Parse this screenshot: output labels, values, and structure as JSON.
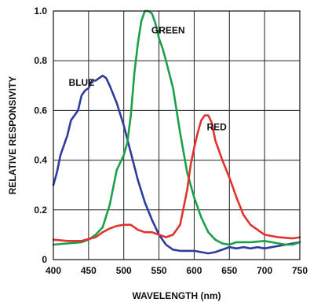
{
  "chart_data": {
    "type": "line",
    "title": "",
    "xlabel": "WAVELENGTH (nm)",
    "ylabel": "RELATIVE RESPONSIVITY",
    "xlim": [
      400,
      750
    ],
    "ylim": [
      0,
      1.0
    ],
    "x_ticks": [
      "400",
      "450",
      "500",
      "550",
      "600",
      "650",
      "700",
      "750"
    ],
    "y_ticks": [
      "0",
      "0.2",
      "0.4",
      "0.6",
      "0.8",
      "1.0"
    ],
    "grid": true,
    "series": [
      {
        "name": "BLUE",
        "color": "#2e3a9c",
        "points": [
          [
            400,
            0.3
          ],
          [
            405,
            0.35
          ],
          [
            410,
            0.42
          ],
          [
            415,
            0.46
          ],
          [
            420,
            0.5
          ],
          [
            425,
            0.56
          ],
          [
            430,
            0.58
          ],
          [
            435,
            0.6
          ],
          [
            440,
            0.66
          ],
          [
            445,
            0.68
          ],
          [
            450,
            0.69
          ],
          [
            455,
            0.72
          ],
          [
            460,
            0.72
          ],
          [
            465,
            0.73
          ],
          [
            470,
            0.74
          ],
          [
            475,
            0.73
          ],
          [
            480,
            0.7
          ],
          [
            490,
            0.63
          ],
          [
            500,
            0.54
          ],
          [
            510,
            0.43
          ],
          [
            520,
            0.32
          ],
          [
            530,
            0.23
          ],
          [
            540,
            0.16
          ],
          [
            550,
            0.1
          ],
          [
            560,
            0.06
          ],
          [
            570,
            0.04
          ],
          [
            580,
            0.035
          ],
          [
            590,
            0.035
          ],
          [
            600,
            0.035
          ],
          [
            610,
            0.03
          ],
          [
            620,
            0.025
          ],
          [
            630,
            0.03
          ],
          [
            640,
            0.04
          ],
          [
            650,
            0.05
          ],
          [
            660,
            0.045
          ],
          [
            670,
            0.05
          ],
          [
            680,
            0.045
          ],
          [
            690,
            0.05
          ],
          [
            700,
            0.045
          ],
          [
            710,
            0.05
          ],
          [
            720,
            0.055
          ],
          [
            730,
            0.06
          ],
          [
            740,
            0.065
          ],
          [
            750,
            0.07
          ]
        ]
      },
      {
        "name": "GREEN",
        "color": "#1aa04a",
        "points": [
          [
            400,
            0.06
          ],
          [
            420,
            0.065
          ],
          [
            440,
            0.07
          ],
          [
            450,
            0.08
          ],
          [
            460,
            0.1
          ],
          [
            470,
            0.13
          ],
          [
            480,
            0.22
          ],
          [
            490,
            0.36
          ],
          [
            500,
            0.42
          ],
          [
            505,
            0.47
          ],
          [
            510,
            0.58
          ],
          [
            515,
            0.75
          ],
          [
            520,
            0.87
          ],
          [
            525,
            0.96
          ],
          [
            530,
            1.0
          ],
          [
            535,
            1.0
          ],
          [
            540,
            0.99
          ],
          [
            545,
            0.95
          ],
          [
            550,
            0.89
          ],
          [
            555,
            0.85
          ],
          [
            560,
            0.8
          ],
          [
            570,
            0.69
          ],
          [
            580,
            0.51
          ],
          [
            590,
            0.35
          ],
          [
            600,
            0.25
          ],
          [
            610,
            0.17
          ],
          [
            620,
            0.11
          ],
          [
            630,
            0.08
          ],
          [
            640,
            0.065
          ],
          [
            650,
            0.06
          ],
          [
            660,
            0.07
          ],
          [
            680,
            0.07
          ],
          [
            700,
            0.075
          ],
          [
            710,
            0.07
          ],
          [
            720,
            0.065
          ],
          [
            730,
            0.06
          ],
          [
            740,
            0.06
          ],
          [
            750,
            0.07
          ]
        ]
      },
      {
        "name": "RED",
        "color": "#e0332e",
        "points": [
          [
            400,
            0.08
          ],
          [
            420,
            0.075
          ],
          [
            440,
            0.075
          ],
          [
            460,
            0.09
          ],
          [
            470,
            0.11
          ],
          [
            480,
            0.125
          ],
          [
            490,
            0.135
          ],
          [
            500,
            0.14
          ],
          [
            510,
            0.14
          ],
          [
            520,
            0.12
          ],
          [
            530,
            0.11
          ],
          [
            540,
            0.11
          ],
          [
            550,
            0.1
          ],
          [
            560,
            0.09
          ],
          [
            570,
            0.1
          ],
          [
            580,
            0.14
          ],
          [
            590,
            0.28
          ],
          [
            595,
            0.38
          ],
          [
            600,
            0.45
          ],
          [
            605,
            0.51
          ],
          [
            610,
            0.56
          ],
          [
            615,
            0.58
          ],
          [
            620,
            0.58
          ],
          [
            625,
            0.55
          ],
          [
            630,
            0.48
          ],
          [
            640,
            0.4
          ],
          [
            650,
            0.33
          ],
          [
            660,
            0.25
          ],
          [
            670,
            0.18
          ],
          [
            680,
            0.14
          ],
          [
            690,
            0.12
          ],
          [
            700,
            0.1
          ],
          [
            720,
            0.09
          ],
          [
            740,
            0.085
          ],
          [
            750,
            0.09
          ]
        ]
      }
    ],
    "labels": [
      {
        "text": "BLUE",
        "x": 440,
        "y": 0.7
      },
      {
        "text": "GREEN",
        "x": 563,
        "y": 0.91
      },
      {
        "text": "RED",
        "x": 632,
        "y": 0.52
      }
    ]
  }
}
